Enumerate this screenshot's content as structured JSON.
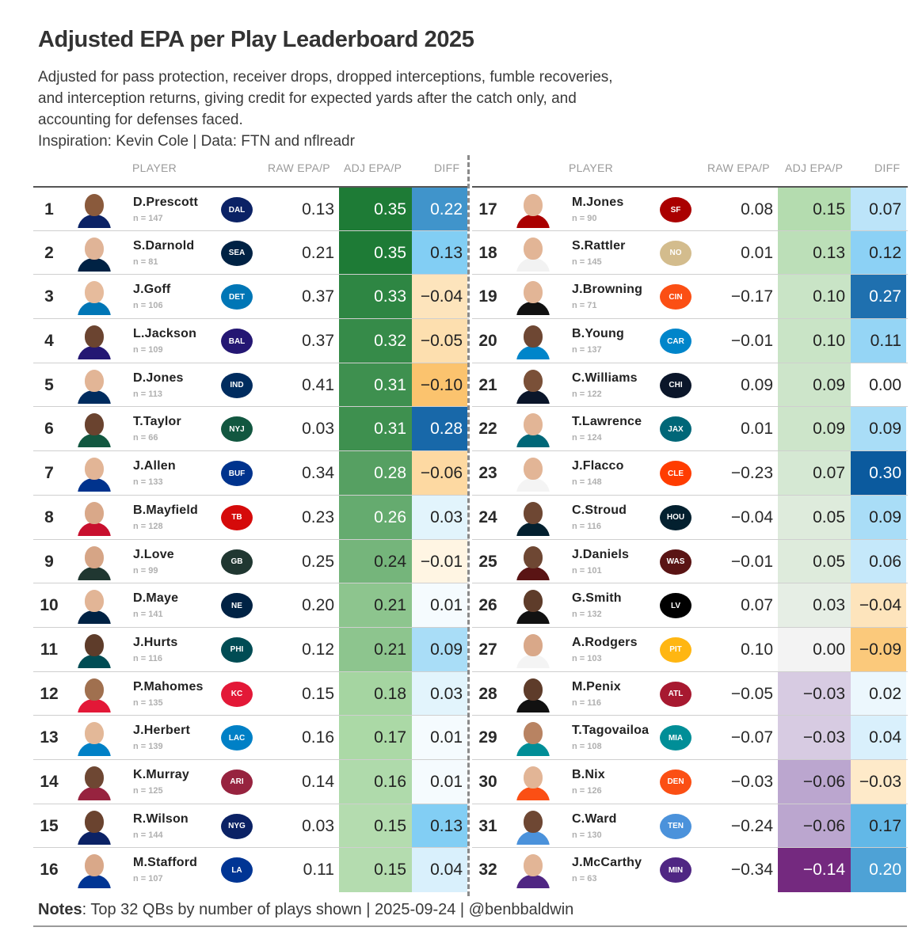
{
  "title": "Adjusted EPA per Play Leaderboard 2025",
  "subtitle_lines": [
    "Adjusted for pass protection, receiver drops, dropped interceptions, fumble recoveries,",
    "and interception returns, giving credit for expected yards after the catch only, and",
    "accounting for defenses faced.",
    "Inspiration: Kevin Cole | Data: FTN and nflreadr"
  ],
  "headers": {
    "player": "PLAYER",
    "raw": "RAW EPA/P",
    "adj": "ADJ EPA/P",
    "diff": "DIFF"
  },
  "notes": {
    "label": "Notes",
    "text": ": Top 32 QBs by number of plays shown | 2025-09-24 | @benbbaldwin"
  },
  "rows": [
    {
      "rank": "1",
      "name": "D.Prescott",
      "plays": "n = 147",
      "raw": "0.13",
      "adj": "0.35",
      "diff": "0.22",
      "team": "DAL",
      "team_color": "#0b2265",
      "skin": "#8a5a3c",
      "jersey": "#0b2265"
    },
    {
      "rank": "2",
      "name": "S.Darnold",
      "plays": "n = 81",
      "raw": "0.21",
      "adj": "0.35",
      "diff": "0.13",
      "team": "SEA",
      "team_color": "#002244",
      "skin": "#e0b497",
      "jersey": "#002244"
    },
    {
      "rank": "3",
      "name": "J.Goff",
      "plays": "n = 106",
      "raw": "0.37",
      "adj": "0.33",
      "diff": "−0.04",
      "team": "DET",
      "team_color": "#0076b6",
      "skin": "#e6bb9c",
      "jersey": "#0076b6"
    },
    {
      "rank": "4",
      "name": "L.Jackson",
      "plays": "n = 109",
      "raw": "0.37",
      "adj": "0.32",
      "diff": "−0.05",
      "team": "BAL",
      "team_color": "#241773",
      "skin": "#6b4430",
      "jersey": "#241773"
    },
    {
      "rank": "5",
      "name": "D.Jones",
      "plays": "n = 113",
      "raw": "0.41",
      "adj": "0.31",
      "diff": "−0.10",
      "team": "IND",
      "team_color": "#002c5f",
      "skin": "#e2b596",
      "jersey": "#002c5f"
    },
    {
      "rank": "6",
      "name": "T.Taylor",
      "plays": "n = 66",
      "raw": "0.03",
      "adj": "0.31",
      "diff": "0.28",
      "team": "NYJ",
      "team_color": "#125740",
      "skin": "#6a432f",
      "jersey": "#125740"
    },
    {
      "rank": "7",
      "name": "J.Allen",
      "plays": "n = 133",
      "raw": "0.34",
      "adj": "0.28",
      "diff": "−0.06",
      "team": "BUF",
      "team_color": "#00338d",
      "skin": "#e2b596",
      "jersey": "#00338d"
    },
    {
      "rank": "8",
      "name": "B.Mayfield",
      "plays": "n = 128",
      "raw": "0.23",
      "adj": "0.26",
      "diff": "0.03",
      "team": "TB",
      "team_color": "#d50a0a",
      "skin": "#d9a889",
      "jersey": "#c8102e"
    },
    {
      "rank": "9",
      "name": "J.Love",
      "plays": "n = 99",
      "raw": "0.25",
      "adj": "0.24",
      "diff": "−0.01",
      "team": "GB",
      "team_color": "#203731",
      "skin": "#d6a586",
      "jersey": "#203731"
    },
    {
      "rank": "10",
      "name": "D.Maye",
      "plays": "n = 141",
      "raw": "0.20",
      "adj": "0.21",
      "diff": "0.01",
      "team": "NE",
      "team_color": "#002244",
      "skin": "#e2b596",
      "jersey": "#002244"
    },
    {
      "rank": "11",
      "name": "J.Hurts",
      "plays": "n = 116",
      "raw": "0.12",
      "adj": "0.21",
      "diff": "0.09",
      "team": "PHI",
      "team_color": "#004c54",
      "skin": "#5e3c2a",
      "jersey": "#004c54"
    },
    {
      "rank": "12",
      "name": "P.Mahomes",
      "plays": "n = 135",
      "raw": "0.15",
      "adj": "0.18",
      "diff": "0.03",
      "team": "KC",
      "team_color": "#e31837",
      "skin": "#a0704f",
      "jersey": "#e31837"
    },
    {
      "rank": "13",
      "name": "J.Herbert",
      "plays": "n = 139",
      "raw": "0.16",
      "adj": "0.17",
      "diff": "0.01",
      "team": "LAC",
      "team_color": "#0080c6",
      "skin": "#e3b898",
      "jersey": "#0080c6"
    },
    {
      "rank": "14",
      "name": "K.Murray",
      "plays": "n = 125",
      "raw": "0.14",
      "adj": "0.16",
      "diff": "0.01",
      "team": "ARI",
      "team_color": "#97233f",
      "skin": "#6e4733",
      "jersey": "#97233f"
    },
    {
      "rank": "15",
      "name": "R.Wilson",
      "plays": "n = 144",
      "raw": "0.03",
      "adj": "0.15",
      "diff": "0.13",
      "team": "NYG",
      "team_color": "#0b2265",
      "skin": "#6a432f",
      "jersey": "#0b2265"
    },
    {
      "rank": "16",
      "name": "M.Stafford",
      "plays": "n = 107",
      "raw": "0.11",
      "adj": "0.15",
      "diff": "0.04",
      "team": "LA",
      "team_color": "#003594",
      "skin": "#d9a889",
      "jersey": "#003594"
    },
    {
      "rank": "17",
      "name": "M.Jones",
      "plays": "n = 90",
      "raw": "0.08",
      "adj": "0.15",
      "diff": "0.07",
      "team": "SF",
      "team_color": "#aa0000",
      "skin": "#e2b596",
      "jersey": "#aa0000"
    },
    {
      "rank": "18",
      "name": "S.Rattler",
      "plays": "n = 145",
      "raw": "0.01",
      "adj": "0.13",
      "diff": "0.12",
      "team": "NO",
      "team_color": "#d3bc8d",
      "skin": "#e2b596",
      "jersey": "#f2f2f2"
    },
    {
      "rank": "19",
      "name": "J.Browning",
      "plays": "n = 71",
      "raw": "−0.17",
      "adj": "0.10",
      "diff": "0.27",
      "team": "CIN",
      "team_color": "#fb4f14",
      "skin": "#e2b596",
      "jersey": "#111111"
    },
    {
      "rank": "20",
      "name": "B.Young",
      "plays": "n = 137",
      "raw": "−0.01",
      "adj": "0.10",
      "diff": "0.11",
      "team": "CAR",
      "team_color": "#0085ca",
      "skin": "#6e4733",
      "jersey": "#0085ca"
    },
    {
      "rank": "21",
      "name": "C.Williams",
      "plays": "n = 122",
      "raw": "0.09",
      "adj": "0.09",
      "diff": "0.00",
      "team": "CHI",
      "team_color": "#0b162a",
      "skin": "#7a5038",
      "jersey": "#0b162a"
    },
    {
      "rank": "22",
      "name": "T.Lawrence",
      "plays": "n = 124",
      "raw": "0.01",
      "adj": "0.09",
      "diff": "0.09",
      "team": "JAX",
      "team_color": "#006778",
      "skin": "#e2b596",
      "jersey": "#006778"
    },
    {
      "rank": "23",
      "name": "J.Flacco",
      "plays": "n = 148",
      "raw": "−0.23",
      "adj": "0.07",
      "diff": "0.30",
      "team": "CLE",
      "team_color": "#ff3c00",
      "skin": "#e2b596",
      "jersey": "#f4f4f4"
    },
    {
      "rank": "24",
      "name": "C.Stroud",
      "plays": "n = 116",
      "raw": "−0.04",
      "adj": "0.05",
      "diff": "0.09",
      "team": "HOU",
      "team_color": "#03202f",
      "skin": "#6e4733",
      "jersey": "#03202f"
    },
    {
      "rank": "25",
      "name": "J.Daniels",
      "plays": "n = 101",
      "raw": "−0.01",
      "adj": "0.05",
      "diff": "0.06",
      "team": "WAS",
      "team_color": "#5a1414",
      "skin": "#6e4733",
      "jersey": "#5a1414"
    },
    {
      "rank": "26",
      "name": "G.Smith",
      "plays": "n = 132",
      "raw": "0.07",
      "adj": "0.03",
      "diff": "−0.04",
      "team": "LV",
      "team_color": "#000000",
      "skin": "#5e3c2a",
      "jersey": "#111111"
    },
    {
      "rank": "27",
      "name": "A.Rodgers",
      "plays": "n = 103",
      "raw": "0.10",
      "adj": "0.00",
      "diff": "−0.09",
      "team": "PIT",
      "team_color": "#ffb612",
      "skin": "#d9a889",
      "jersey": "#f4f4f4"
    },
    {
      "rank": "28",
      "name": "M.Penix",
      "plays": "n = 116",
      "raw": "−0.05",
      "adj": "−0.03",
      "diff": "0.02",
      "team": "ATL",
      "team_color": "#a71930",
      "skin": "#5e3c2a",
      "jersey": "#111111"
    },
    {
      "rank": "29",
      "name": "T.Tagovailoa",
      "plays": "n = 108",
      "raw": "−0.07",
      "adj": "−0.03",
      "diff": "0.04",
      "team": "MIA",
      "team_color": "#008e97",
      "skin": "#b88362",
      "jersey": "#008e97"
    },
    {
      "rank": "30",
      "name": "B.Nix",
      "plays": "n = 126",
      "raw": "−0.03",
      "adj": "−0.06",
      "diff": "−0.03",
      "team": "DEN",
      "team_color": "#fb4f14",
      "skin": "#e2b596",
      "jersey": "#fb4f14"
    },
    {
      "rank": "31",
      "name": "C.Ward",
      "plays": "n = 130",
      "raw": "−0.24",
      "adj": "−0.06",
      "diff": "0.17",
      "team": "TEN",
      "team_color": "#4b92db",
      "skin": "#6e4733",
      "jersey": "#4b92db"
    },
    {
      "rank": "32",
      "name": "J.McCarthy",
      "plays": "n = 63",
      "raw": "−0.34",
      "adj": "−0.14",
      "diff": "0.20",
      "team": "MIN",
      "team_color": "#4f2683",
      "skin": "#e2b596",
      "jersey": "#4f2683"
    }
  ]
}
